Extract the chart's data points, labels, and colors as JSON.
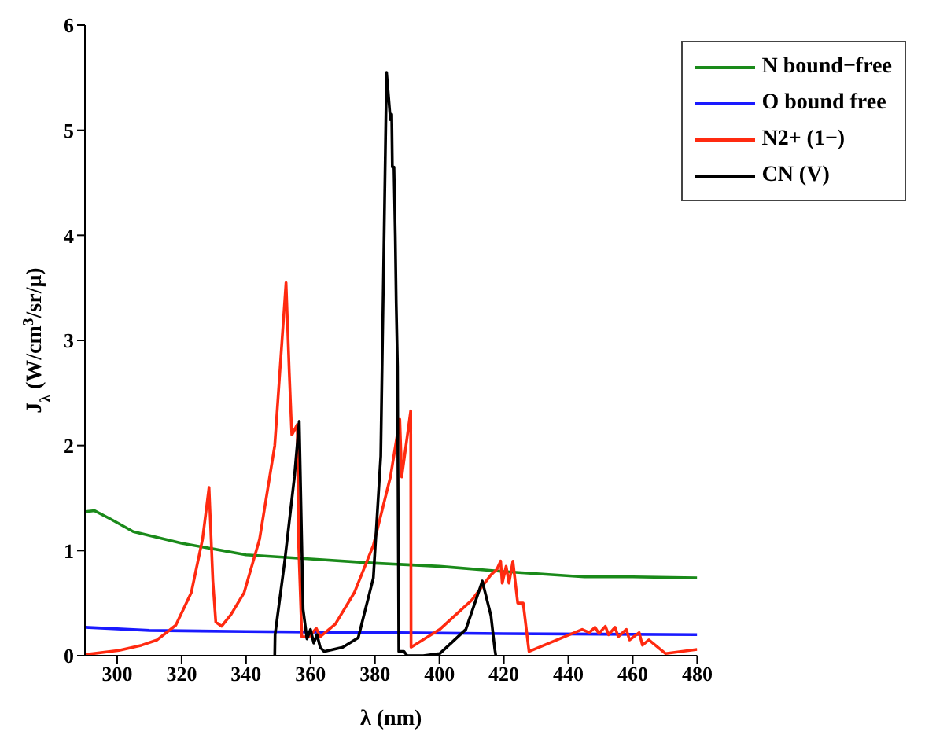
{
  "chart_data": {
    "type": "line",
    "xlabel": "λ (nm)",
    "ylabel": "J$_{λ}$ (W/cm$^{3}$/sr/μ)",
    "xlim": [
      290,
      480
    ],
    "xticks": [
      300,
      320,
      340,
      360,
      380,
      400,
      420,
      440,
      460,
      480
    ],
    "ylim": [
      0,
      6
    ],
    "yticks": [
      0,
      1,
      2,
      3,
      4,
      5,
      6
    ],
    "grid": false,
    "legend": "top right",
    "line_style": "solid",
    "marker": "none",
    "series": [
      {
        "name": "N bound−free",
        "color": "#1a8a1a",
        "x": [
          290,
          293,
          298,
          305,
          320,
          340,
          360,
          380,
          400,
          420,
          445,
          460,
          480
        ],
        "values": [
          1.37,
          1.38,
          1.3,
          1.18,
          1.07,
          0.96,
          0.92,
          0.88,
          0.85,
          0.8,
          0.75,
          0.75,
          0.74
        ]
      },
      {
        "name": "O bound free",
        "color": "#1a1aff",
        "x": [
          290,
          310,
          340,
          380,
          420,
          480
        ],
        "values": [
          0.27,
          0.24,
          0.23,
          0.22,
          0.21,
          0.2
        ]
      },
      {
        "name": "N2+ (1−)",
        "color": "#ff2a10",
        "x": [
          290,
          300.6,
          307.6,
          312.4,
          318.2,
          323,
          326.5,
          328.5,
          329.7,
          330.6,
          332.4,
          335.3,
          339.4,
          344.2,
          348.9,
          352.4,
          353.4,
          354.2,
          355.9,
          356.3,
          357.3,
          359.5,
          361.8,
          363,
          367.7,
          373.6,
          379.5,
          384.8,
          387.7,
          388.3,
          391.1,
          391.2,
          400.1,
          410.1,
          416,
          417.8,
          419,
          419.5,
          420.7,
          421.6,
          422.8,
          424.3,
          426,
          427.8,
          444.3,
          446.5,
          448.3,
          449.5,
          451.5,
          452.5,
          454.5,
          455.5,
          458,
          459,
          462,
          463,
          465,
          470.2,
          480
        ],
        "values": [
          0.01,
          0.05,
          0.1,
          0.15,
          0.29,
          0.6,
          1.11,
          1.6,
          0.71,
          0.32,
          0.28,
          0.39,
          0.6,
          1.11,
          2.0,
          3.55,
          2.7,
          2.1,
          2.2,
          1.07,
          0.18,
          0.18,
          0.26,
          0.18,
          0.3,
          0.6,
          1.05,
          1.7,
          2.25,
          1.7,
          2.33,
          0.08,
          0.25,
          0.53,
          0.77,
          0.82,
          0.9,
          0.69,
          0.85,
          0.69,
          0.9,
          0.5,
          0.5,
          0.04,
          0.25,
          0.22,
          0.27,
          0.21,
          0.28,
          0.2,
          0.27,
          0.18,
          0.25,
          0.15,
          0.22,
          0.1,
          0.15,
          0.02,
          0.06
        ]
      },
      {
        "name": "CN (V)",
        "color": "#000000",
        "x": [
          348.9,
          349,
          352,
          355,
          356.5,
          357.7,
          358.9,
          360,
          361,
          362,
          363,
          364.2,
          370,
          374.8,
          379.5,
          381.8,
          383.6,
          384.8,
          385.2,
          385.4,
          385.9,
          386.3,
          386.6,
          387,
          387.4,
          389,
          390,
          395,
          400.1,
          408.2,
          412.9,
          413.3,
          416,
          417.2,
          417.5
        ],
        "values": [
          0,
          0.2,
          0.9,
          1.7,
          2.23,
          0.44,
          0.16,
          0.25,
          0.12,
          0.2,
          0.08,
          0.04,
          0.08,
          0.17,
          0.74,
          1.9,
          5.55,
          5.1,
          5.15,
          4.65,
          4.65,
          4.0,
          3.35,
          2.75,
          0.04,
          0.04,
          0,
          0,
          0.02,
          0.25,
          0.67,
          0.71,
          0.38,
          0.06,
          0
        ]
      }
    ]
  }
}
